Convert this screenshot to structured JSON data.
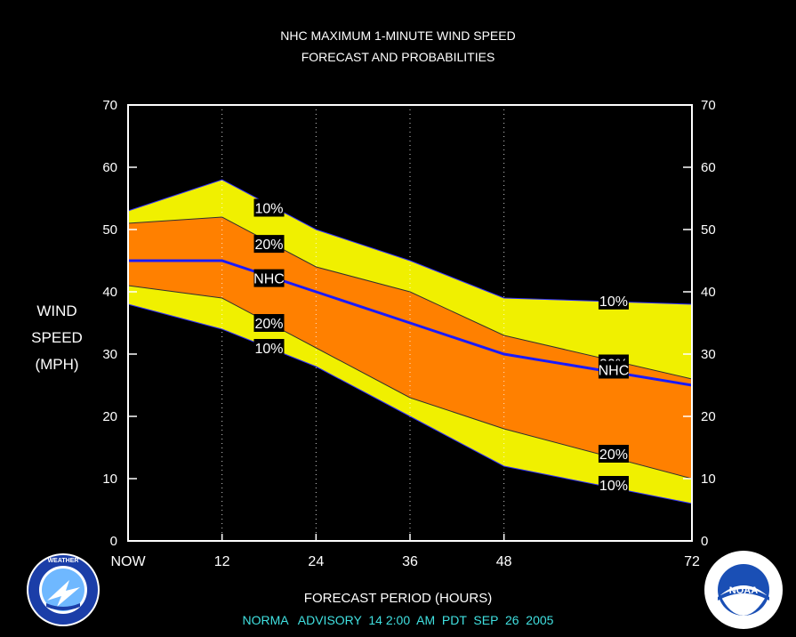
{
  "header": {
    "title_line1": "NHC MAXIMUM 1-MINUTE WIND SPEED",
    "title_line2": "FORECAST AND PROBABILITIES"
  },
  "ylabel": {
    "line1": "WIND",
    "line2": "SPEED",
    "line3": "(MPH)"
  },
  "xlabel": "FORECAST PERIOD (HOURS)",
  "advisory": {
    "text": "NORMA   ADVISORY  14 2:00  AM  PDT  SEP  26  2005",
    "color": "#40e0e0"
  },
  "logos": {
    "nws_text": "NATIONAL WEATHER SERVICE",
    "noaa_text": "NOAA"
  },
  "chart_data": {
    "type": "area",
    "title": "NHC MAXIMUM 1-MINUTE WIND SPEED FORECAST AND PROBABILITIES",
    "xlabel": "FORECAST PERIOD (HOURS)",
    "ylabel": "WIND SPEED (MPH)",
    "xlim": [
      0,
      72
    ],
    "ylim": [
      0,
      70
    ],
    "x_ticks": [
      0,
      12,
      24,
      36,
      48,
      72
    ],
    "x_tick_labels": [
      "NOW",
      "12",
      "24",
      "36",
      "48",
      "72"
    ],
    "y_ticks": [
      0,
      10,
      20,
      30,
      40,
      50,
      60,
      70
    ],
    "grid": "vertical dotted at forecast hours",
    "x": [
      0,
      12,
      24,
      36,
      48,
      72
    ],
    "series": [
      {
        "name": "10%",
        "role": "upper_outer",
        "values": [
          53,
          58,
          50,
          45,
          39,
          38
        ]
      },
      {
        "name": "20%",
        "role": "upper_inner",
        "values": [
          51,
          52,
          44,
          40,
          33,
          26
        ]
      },
      {
        "name": "NHC",
        "role": "forecast",
        "values": [
          45,
          45,
          40,
          35,
          30,
          25
        ]
      },
      {
        "name": "20%",
        "role": "lower_inner",
        "values": [
          41,
          39,
          31,
          23,
          18,
          10
        ]
      },
      {
        "name": "10%",
        "role": "lower_outer",
        "values": [
          38,
          34,
          28,
          20,
          12,
          6
        ]
      }
    ],
    "annotations": [
      {
        "text": "10%",
        "x": 18,
        "y": 53.5
      },
      {
        "text": "20%",
        "x": 18,
        "y": 47.7
      },
      {
        "text": "NHC",
        "x": 18,
        "y": 42.2
      },
      {
        "text": "20%",
        "x": 18,
        "y": 35
      },
      {
        "text": "10%",
        "x": 18,
        "y": 31
      },
      {
        "text": "10%",
        "x": 62,
        "y": 38.6
      },
      {
        "text": "20%",
        "x": 62,
        "y": 28.5
      },
      {
        "text": "NHC",
        "x": 62,
        "y": 27.5
      },
      {
        "text": "20%",
        "x": 62,
        "y": 14
      },
      {
        "text": "10%",
        "x": 62,
        "y": 9
      }
    ],
    "colors": {
      "outer_band": "#f0f000",
      "inner_band": "#ff8000",
      "forecast_line": "#1a1aff",
      "outer_edge": "#3030ff"
    }
  }
}
